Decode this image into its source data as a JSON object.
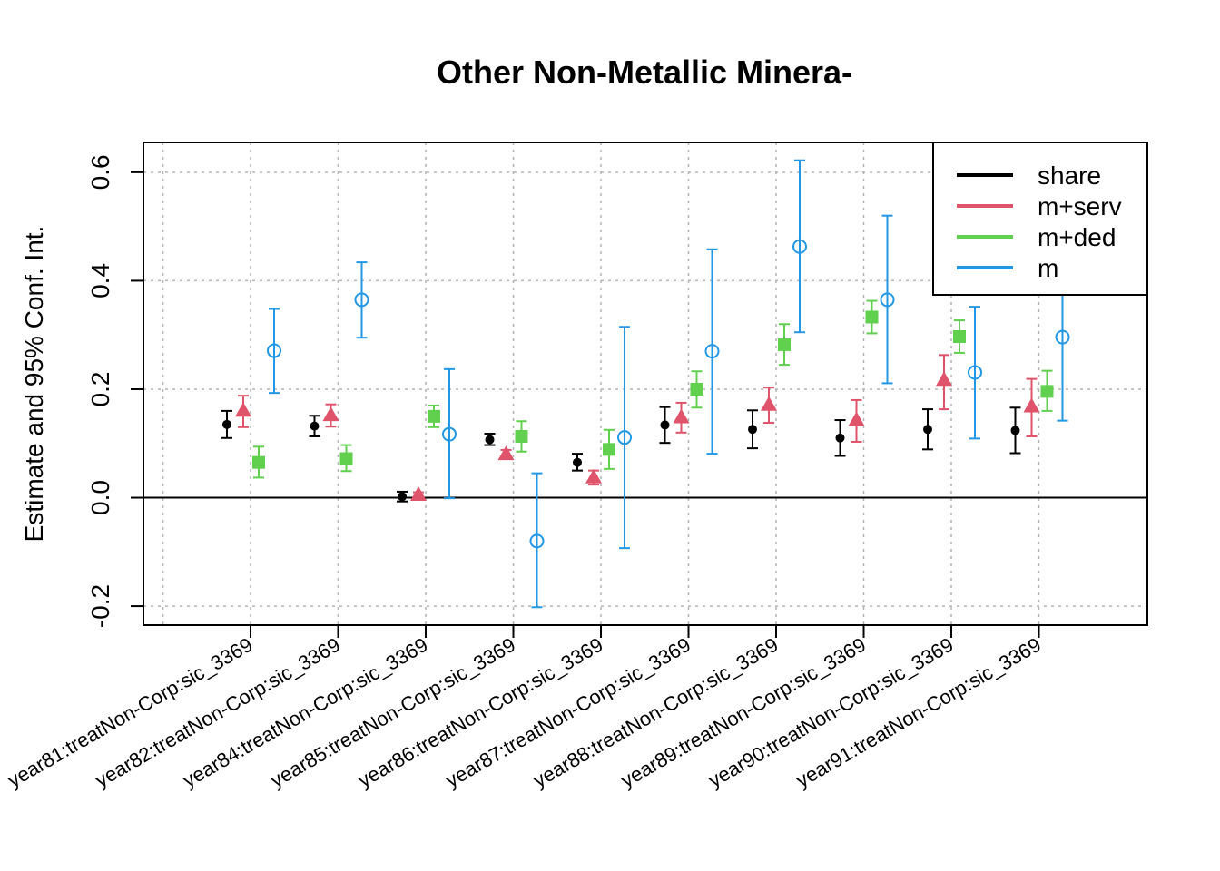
{
  "chart_data": {
    "type": "scatter",
    "title": "Other Non-Metallic Minera-",
    "xlabel": "",
    "ylabel": "Estimate and 95% Conf. Int.",
    "ylim": [
      -0.235,
      0.655
    ],
    "yticks": [
      -0.2,
      0.0,
      0.2,
      0.4,
      0.6
    ],
    "ytick_labels": [
      "-0.2",
      "0.0",
      "0.2",
      "0.4",
      "0.6"
    ],
    "grid": true,
    "legend_position": "top-right",
    "categories": [
      "year81:treatNon-Corp:sic_3369",
      "year82:treatNon-Corp:sic_3369",
      "year84:treatNon-Corp:sic_3369",
      "year85:treatNon-Corp:sic_3369",
      "year86:treatNon-Corp:sic_3369",
      "year87:treatNon-Corp:sic_3369",
      "year88:treatNon-Corp:sic_3369",
      "year89:treatNon-Corp:sic_3369",
      "year90:treatNon-Corp:sic_3369",
      "year91:treatNon-Corp:sic_3369"
    ],
    "series": [
      {
        "name": "share",
        "color": "#000000",
        "marker": "dot",
        "estimates": [
          0.135,
          0.132,
          0.002,
          0.107,
          0.065,
          0.134,
          0.126,
          0.11,
          0.126,
          0.124
        ],
        "lower": [
          0.11,
          0.113,
          -0.007,
          0.097,
          0.05,
          0.101,
          0.091,
          0.077,
          0.089,
          0.082
        ],
        "upper": [
          0.16,
          0.151,
          0.011,
          0.118,
          0.081,
          0.167,
          0.161,
          0.143,
          0.163,
          0.166
        ]
      },
      {
        "name": "m+serv",
        "color": "#DF536B",
        "marker": "triangle",
        "estimates": [
          0.16,
          0.152,
          0.005,
          0.08,
          0.037,
          0.148,
          0.171,
          0.143,
          0.217,
          0.168
        ],
        "lower": [
          0.13,
          0.131,
          -0.001,
          0.072,
          0.024,
          0.12,
          0.138,
          0.103,
          0.163,
          0.113
        ],
        "upper": [
          0.188,
          0.172,
          0.01,
          0.088,
          0.05,
          0.175,
          0.203,
          0.18,
          0.263,
          0.219
        ]
      },
      {
        "name": "m+ded",
        "color": "#61D04F",
        "marker": "square",
        "estimates": [
          0.065,
          0.072,
          0.15,
          0.113,
          0.089,
          0.2,
          0.282,
          0.333,
          0.297,
          0.196
        ],
        "lower": [
          0.037,
          0.049,
          0.13,
          0.085,
          0.053,
          0.166,
          0.245,
          0.303,
          0.267,
          0.16
        ],
        "upper": [
          0.094,
          0.097,
          0.17,
          0.141,
          0.125,
          0.233,
          0.32,
          0.363,
          0.327,
          0.234
        ]
      },
      {
        "name": "m",
        "color": "#2297E6",
        "marker": "open-circle",
        "estimates": [
          0.271,
          0.365,
          0.117,
          -0.08,
          0.111,
          0.27,
          0.463,
          0.365,
          0.231,
          0.296
        ],
        "lower": [
          0.193,
          0.295,
          -0.001,
          -0.202,
          -0.093,
          0.081,
          0.305,
          0.211,
          0.109,
          0.142
        ],
        "upper": [
          0.348,
          0.434,
          0.237,
          0.045,
          0.315,
          0.458,
          0.622,
          0.52,
          0.352,
          0.45
        ]
      }
    ]
  }
}
